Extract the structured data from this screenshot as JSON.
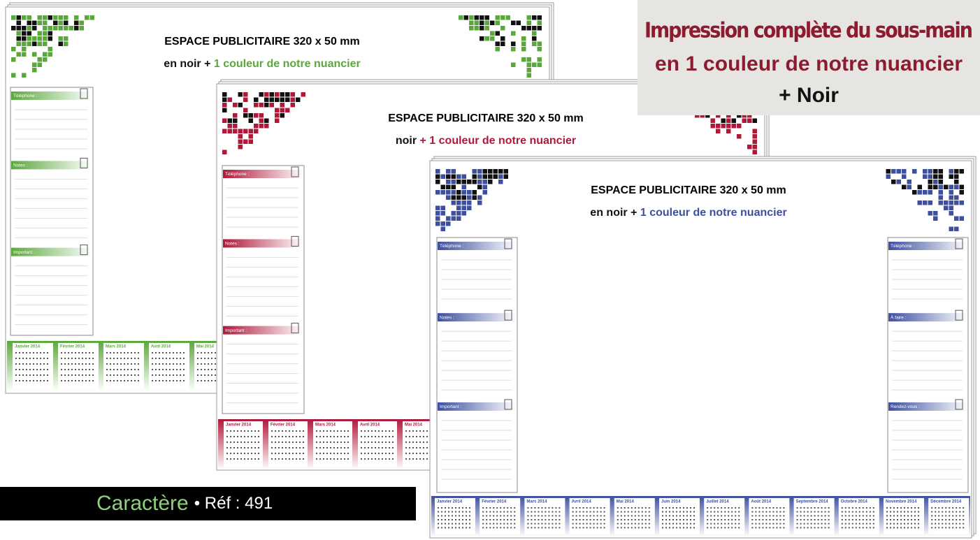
{
  "headline": {
    "lines": [
      "Impression complète du sous-main",
      "en 1 couleur  de  notre nuancier"
    ],
    "extra": "+ Noir"
  },
  "footer": {
    "brand": "Caractère",
    "ref": "• Réf : 491"
  },
  "pads": [
    {
      "color": "#5aa83c",
      "title": "ESPACE PUBLICITAIRE 320 x 50 mm",
      "subtitle_black": "en noir + ",
      "subtitle_color": "1 couleur de notre nuancier",
      "left_panel": [
        "Téléphone :",
        "Notes :",
        "Important :"
      ],
      "months": [
        "Janvier 2014",
        "Février 2014",
        "Mars 2014",
        "Avril 2014",
        "Mai 2014"
      ]
    },
    {
      "color": "#b0183a",
      "title": "ESPACE PUBLICITAIRE 320 x 50 mm",
      "subtitle_black": "noir ",
      "subtitle_color": "+ 1 couleur de notre nuancier",
      "left_panel": [
        "Téléphone :",
        "Notes :",
        "Important :"
      ],
      "months": [
        "Janvier 2014",
        "Février 2014",
        "Mars 2014",
        "Avril 2014",
        "Mai 2014"
      ]
    },
    {
      "color": "#3d4f9e",
      "title": "ESPACE PUBLICITAIRE 320 x 50 mm",
      "subtitle_black": "en noir + ",
      "subtitle_color": "1 couleur de notre nuancier",
      "left_panel": [
        "Téléphone :",
        "Notes :",
        "Important :"
      ],
      "right_panel": [
        "Téléphone :",
        "À faire :",
        "Rendez-vous :"
      ],
      "months": [
        "Janvier 2014",
        "Février 2014",
        "Mars 2014",
        "Avril 2014",
        "Mai 2014",
        "Juin 2014",
        "Juillet 2014",
        "Août 2014",
        "Septembre 2014",
        "Octobre 2014",
        "Novembre 2014",
        "Décembre 2014"
      ]
    }
  ]
}
